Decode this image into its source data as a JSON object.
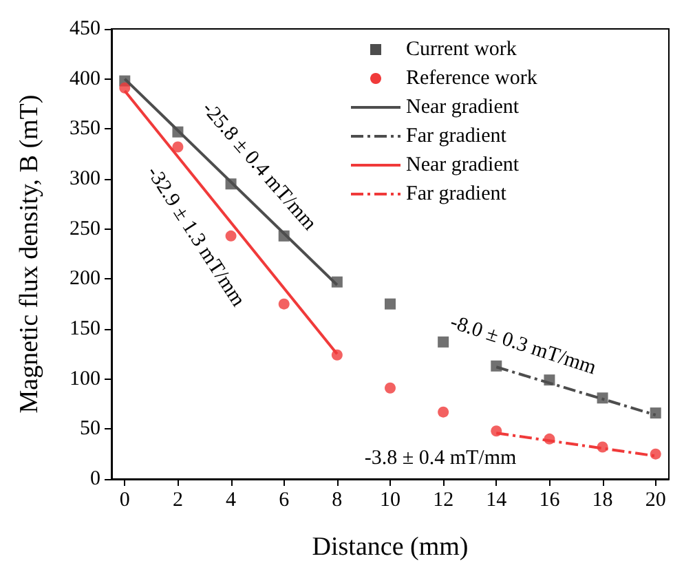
{
  "chart_data": {
    "type": "scatter",
    "xlabel": "Distance (mm)",
    "ylabel": "Magnetic flux density, B (mT)",
    "xlim": [
      -0.5,
      20.5
    ],
    "xticks": [
      0,
      2,
      4,
      6,
      8,
      10,
      12,
      14,
      16,
      18,
      20
    ],
    "ylim": [
      0,
      450
    ],
    "yticks": [
      0,
      50,
      100,
      150,
      200,
      250,
      300,
      350,
      400,
      450
    ],
    "grid": false,
    "legend": "top right",
    "series": [
      {
        "name": "Current work",
        "marker": "square",
        "color": "#4d4d4d",
        "x": [
          0,
          2,
          4,
          6,
          8,
          10,
          12,
          14,
          16,
          18,
          20
        ],
        "values": [
          398,
          347,
          295,
          243,
          197,
          175,
          137,
          113,
          99,
          81,
          66
        ]
      },
      {
        "name": "Reference work",
        "marker": "circle",
        "color": "#f03a3a",
        "x": [
          0,
          2,
          4,
          6,
          8,
          10,
          12,
          14,
          16,
          18,
          20
        ],
        "values": [
          391,
          332,
          243,
          175,
          124,
          91,
          67,
          48,
          40,
          32,
          25
        ]
      },
      {
        "name": "Near gradient",
        "type": "line",
        "marker": "none",
        "line_style": "solid",
        "color": "#4d4d4d",
        "x": [
          0,
          8
        ],
        "values": [
          400,
          194
        ]
      },
      {
        "name": "Far gradient",
        "type": "line",
        "marker": "none",
        "line_style": "dashed",
        "color": "#4d4d4d",
        "x": [
          14,
          20
        ],
        "values": [
          112,
          64
        ]
      },
      {
        "name": "Near gradient",
        "type": "line",
        "marker": "none",
        "line_style": "solid",
        "color": "#f03a3a",
        "x": [
          0,
          8
        ],
        "values": [
          388,
          125
        ]
      },
      {
        "name": "Far gradient",
        "type": "line",
        "marker": "none",
        "line_style": "dashed",
        "color": "#f03a3a",
        "x": [
          14,
          20
        ],
        "values": [
          46,
          23
        ]
      }
    ],
    "annotations": [
      "-25.8 ± 0.4 mT/mm",
      "-32.9 ± 1.3 mT/mm",
      "-8.0 ± 0.3 mT/mm",
      "-3.8 ± 0.4 mT/mm"
    ]
  }
}
